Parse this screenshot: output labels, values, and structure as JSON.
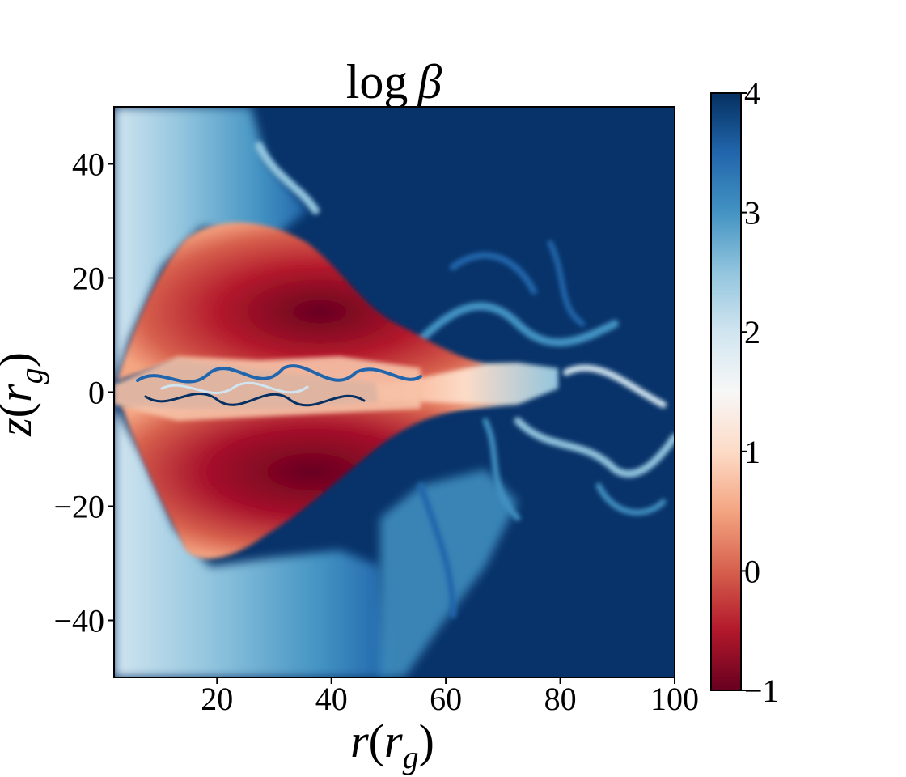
{
  "chart_data": {
    "type": "heatmap",
    "title": "log β",
    "title_parts": {
      "fn": "log",
      "sym": "β"
    },
    "xlabel": "r(r_g)",
    "xlabel_parts": {
      "var": "r",
      "paren_open": "(",
      "sub_var": "r",
      "sub": "g",
      "paren_close": ")"
    },
    "ylabel": "z(r_g)",
    "ylabel_parts": {
      "var": "z",
      "paren_open": "(",
      "sub_var": "r",
      "sub": "g",
      "paren_close": ")"
    },
    "xlim": [
      2,
      100
    ],
    "ylim": [
      -50,
      50
    ],
    "xticks": [
      20,
      40,
      60,
      80,
      100
    ],
    "xtick_labels": [
      "20",
      "40",
      "60",
      "80",
      "100"
    ],
    "yticks": [
      40,
      20,
      0,
      -20,
      -40
    ],
    "ytick_labels": [
      "40",
      "20",
      "0",
      "−20",
      "−40"
    ],
    "colorbar": {
      "label": "",
      "range": [
        -1,
        4
      ],
      "ticks": [
        4,
        3,
        2,
        1,
        0,
        -1
      ],
      "tick_labels": [
        "4",
        "3",
        "2",
        "1",
        "0",
        "−1"
      ],
      "colormap": "RdBu",
      "color_stops": [
        "#67001f",
        "#b2182b",
        "#d6604d",
        "#f4a582",
        "#fddbc7",
        "#f7f7f7",
        "#d1e5f0",
        "#92c5de",
        "#4393c3",
        "#2166ac",
        "#053061"
      ]
    },
    "field_description_regions": [
      {
        "name": "magnetized-lobe-upper",
        "value": 0.3
      },
      {
        "name": "magnetized-lobe-lower",
        "value": 0.2
      },
      {
        "name": "midplane-disk",
        "value": 1.5
      },
      {
        "name": "corona-left",
        "value": 2.8
      },
      {
        "name": "ambient",
        "value": 4
      }
    ]
  }
}
